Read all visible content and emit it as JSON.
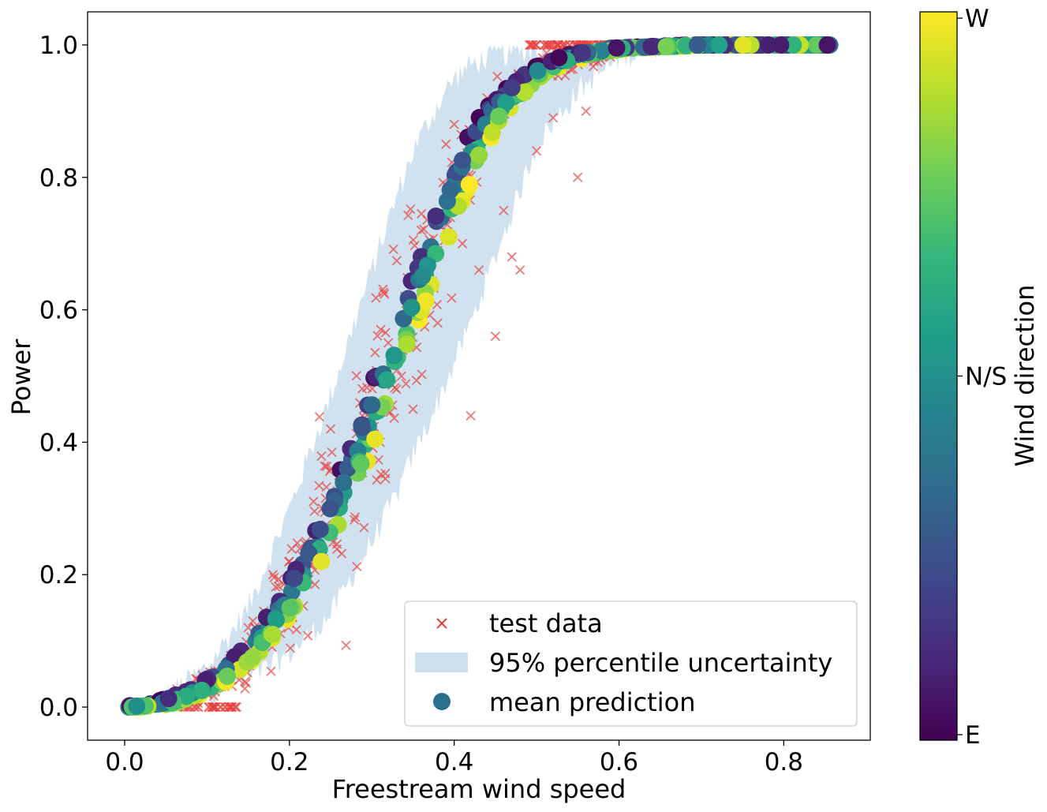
{
  "chart_data": {
    "type": "scatter",
    "title": "",
    "xlabel": "Freestream wind speed",
    "ylabel": "Power",
    "xlim": [
      -0.045,
      0.905
    ],
    "ylim": [
      -0.05,
      1.05
    ],
    "xticks": [
      0.0,
      0.2,
      0.4,
      0.6,
      0.8
    ],
    "xtick_labels": [
      "0.0",
      "0.2",
      "0.4",
      "0.6",
      "0.8"
    ],
    "yticks": [
      0.0,
      0.2,
      0.4,
      0.6,
      0.8,
      1.0
    ],
    "ytick_labels": [
      "0.0",
      "0.2",
      "0.4",
      "0.6",
      "0.8",
      "1.0"
    ],
    "grid": false,
    "legend_position": "lower-right",
    "legend": [
      {
        "key": "test",
        "label": "test data"
      },
      {
        "key": "band",
        "label": "95% percentile uncertainty"
      },
      {
        "key": "mean",
        "label": "mean prediction"
      }
    ],
    "colors": {
      "test_data": "#e8413d",
      "band": "#cde0ee",
      "mean_legend": "#2a6f8e"
    },
    "colorbar": {
      "label": "Wind direction",
      "colormap": "viridis",
      "ticks": [
        {
          "value": 0.0,
          "label": "E"
        },
        {
          "value": 0.5,
          "label": "N/S"
        },
        {
          "value": 1.0,
          "label": "W"
        }
      ],
      "stops": [
        "#440154",
        "#482878",
        "#3e4989",
        "#31688e",
        "#26828e",
        "#1f9e89",
        "#35b779",
        "#6ece58",
        "#b5de2b",
        "#fde725"
      ]
    },
    "mean_prediction_curve": {
      "description": "logistic power curve, mean prediction sampled along x",
      "x": [
        0.005,
        0.05,
        0.1,
        0.15,
        0.2,
        0.25,
        0.28,
        0.3,
        0.32,
        0.35,
        0.38,
        0.4,
        0.43,
        0.45,
        0.5,
        0.55,
        0.6,
        0.7,
        0.8,
        0.86
      ],
      "y": [
        0.0,
        0.006,
        0.03,
        0.08,
        0.16,
        0.28,
        0.37,
        0.44,
        0.51,
        0.61,
        0.71,
        0.78,
        0.86,
        0.9,
        0.96,
        0.985,
        0.995,
        1.0,
        1.0,
        1.0
      ]
    },
    "uncertainty_band": {
      "x": [
        0.03,
        0.1,
        0.15,
        0.2,
        0.25,
        0.3,
        0.33,
        0.35,
        0.38,
        0.4,
        0.42,
        0.45,
        0.48,
        0.5,
        0.55,
        0.6,
        0.65
      ],
      "lower": [
        0.0,
        0.02,
        0.04,
        0.08,
        0.14,
        0.25,
        0.32,
        0.38,
        0.46,
        0.52,
        0.58,
        0.68,
        0.78,
        0.85,
        0.93,
        0.98,
        1.0
      ],
      "upper": [
        0.0,
        0.06,
        0.15,
        0.3,
        0.47,
        0.66,
        0.77,
        0.84,
        0.91,
        0.95,
        0.97,
        0.985,
        0.99,
        0.995,
        1.0,
        1.0,
        1.0
      ]
    },
    "test_data_sample": {
      "x": [
        0.02,
        0.08,
        0.1,
        0.12,
        0.13,
        0.15,
        0.18,
        0.2,
        0.22,
        0.24,
        0.25,
        0.26,
        0.28,
        0.29,
        0.3,
        0.31,
        0.32,
        0.33,
        0.34,
        0.35,
        0.36,
        0.37,
        0.38,
        0.39,
        0.4,
        0.41,
        0.42,
        0.43,
        0.44,
        0.45,
        0.46,
        0.47,
        0.48,
        0.5,
        0.52,
        0.55,
        0.56,
        0.6
      ],
      "y": [
        0.0,
        0.0,
        0.02,
        0.05,
        0.0,
        0.12,
        0.2,
        0.22,
        0.25,
        0.3,
        0.42,
        0.35,
        0.38,
        0.45,
        0.5,
        0.4,
        0.55,
        0.48,
        0.62,
        0.45,
        0.72,
        0.65,
        0.58,
        0.85,
        0.88,
        0.7,
        0.44,
        0.66,
        0.92,
        0.56,
        0.75,
        0.68,
        0.66,
        0.84,
        0.89,
        0.8,
        0.9,
        1.0
      ]
    }
  }
}
